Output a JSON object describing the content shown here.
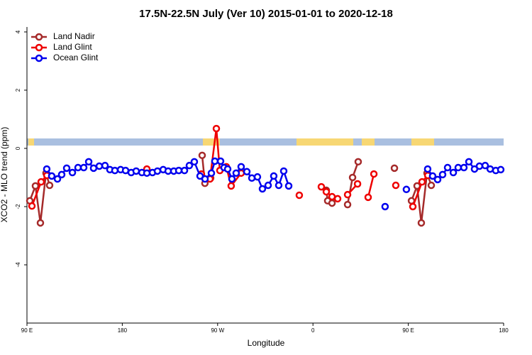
{
  "chart_data": {
    "type": "line",
    "title": "17.5N-22.5N July (Ver 10)   2015-01-01 to 2020-12-18",
    "x_label": "Longitude",
    "y_label": "XCO2 - MLO trend (ppm)",
    "xlim": [
      90,
      540
    ],
    "ylim": [
      -6,
      4.17
    ],
    "xticks": [
      {
        "value": 90,
        "label": "90 E"
      },
      180,
      {
        "value": 270,
        "label": "90 W"
      },
      {
        "value": 360,
        "label": "0"
      },
      {
        "value": 450,
        "label": "90 E"
      },
      {
        "value": 540,
        "label": "180"
      }
    ],
    "yticks": [
      -4,
      -2,
      0,
      2,
      4
    ],
    "legend": "top-left",
    "series": [
      {
        "name": "Land Nadir",
        "color": "#a52a2a",
        "x": [
          92.7,
          98.0,
          102.7,
          108.0,
          111.4,
          null,
          255.4,
          258.0,
          263.4,
          null,
          372.6,
          373.9,
          378.0,
          null,
          392.7,
          397.4,
          402.7,
          null,
          436.9,
          null,
          453.0,
          458.3,
          462.3,
          467.7,
          471.7
        ],
        "values": [
          -1.8,
          -1.29,
          -2.56,
          -0.85,
          -1.27,
          null,
          -0.24,
          -1.2,
          -1.02,
          null,
          -1.44,
          -1.8,
          -1.88,
          null,
          -1.93,
          -1.0,
          -0.46,
          null,
          -0.68,
          null,
          -1.8,
          -1.29,
          -2.56,
          -0.85,
          -1.27
        ]
      },
      {
        "name": "Land Glint",
        "color": "#ee0000",
        "x": [
          94.7,
          103.4,
          108.8,
          null,
          203.2,
          null,
          254.7,
          262.8,
          268.8,
          272.1,
          278.2,
          282.8,
          292.2,
          null,
          347.1,
          null,
          367.9,
          372.6,
          378.0,
          383.3,
          null,
          392.7,
          402.1,
          null,
          412.1,
          417.5,
          null,
          438.2,
          null,
          454.3,
          463.0,
          468.4
        ],
        "values": [
          -1.98,
          -1.15,
          -0.93,
          null,
          -0.71,
          null,
          -0.88,
          -1.05,
          0.68,
          -0.76,
          -0.63,
          -1.29,
          -0.85,
          null,
          -1.61,
          null,
          -1.32,
          -1.49,
          -1.66,
          -1.73,
          null,
          -1.59,
          -1.22,
          null,
          -1.68,
          -0.88,
          null,
          -1.27,
          null,
          -2.0,
          -1.15,
          -0.93
        ]
      },
      {
        "name": "Ocean Glint",
        "color": "#0000ee",
        "x": [
          108.7,
          113.4,
          118.8,
          122.8,
          127.5,
          132.9,
          138.2,
          143.6,
          148.3,
          152.9,
          158.3,
          163.7,
          168.3,
          173.0,
          178.4,
          183.1,
          188.4,
          193.1,
          198.5,
          203.2,
          208.5,
          213.2,
          218.6,
          223.3,
          228.6,
          233.3,
          238.7,
          243.3,
          248.0,
          253.4,
          258.1,
          264.1,
          267.4,
          272.8,
          276.1,
          279.5,
          283.5,
          287.5,
          292.2,
          297.6,
          302.3,
          307.6,
          312.3,
          317.7,
          323.0,
          327.7,
          332.4,
          337.1,
          null,
          428.1,
          null,
          448.2,
          null,
          468.3,
          473.0,
          477.7,
          482.4,
          487.1,
          492.5,
          497.1,
          502.5,
          507.2,
          512.5,
          517.2,
          522.6,
          527.3,
          532.6,
          537.3
        ],
        "values": [
          -0.71,
          -0.95,
          -1.05,
          -0.9,
          -0.68,
          -0.83,
          -0.66,
          -0.66,
          -0.46,
          -0.68,
          -0.61,
          -0.59,
          -0.73,
          -0.76,
          -0.73,
          -0.76,
          -0.83,
          -0.78,
          -0.83,
          -0.85,
          -0.83,
          -0.78,
          -0.73,
          -0.78,
          -0.78,
          -0.76,
          -0.76,
          -0.59,
          -0.46,
          -0.95,
          -1.05,
          -0.85,
          -0.44,
          -0.44,
          -0.66,
          -0.71,
          -1.05,
          -0.85,
          -0.63,
          -0.8,
          -1.02,
          -0.98,
          -1.39,
          -1.27,
          -0.95,
          -1.27,
          -0.78,
          -1.29,
          null,
          -2.0,
          null,
          -1.41,
          null,
          -0.71,
          -0.95,
          -1.07,
          -0.9,
          -0.66,
          -0.83,
          -0.66,
          -0.66,
          -0.46,
          -0.71,
          -0.61,
          -0.59,
          -0.71,
          -0.76,
          -0.73
        ]
      }
    ]
  }
}
